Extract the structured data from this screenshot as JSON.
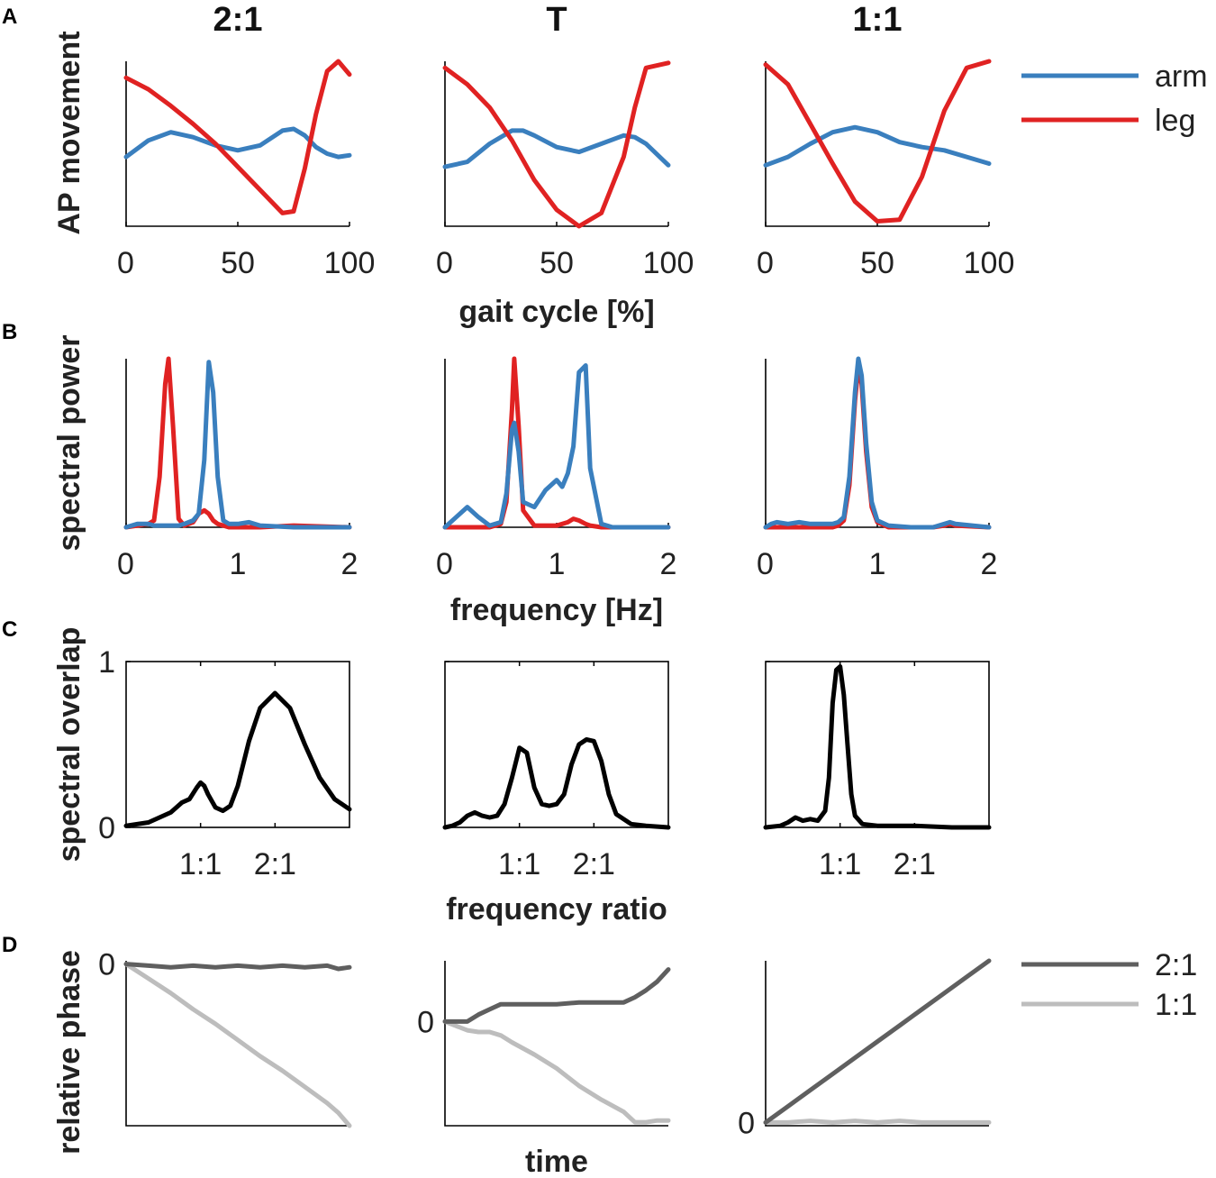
{
  "colors": {
    "arm": "#3a7fbe",
    "leg": "#e02222",
    "ratio21": "#5f5f5f",
    "ratio11": "#bdbdbd",
    "overlap": "#000000"
  },
  "columns": [
    "2:1",
    "T",
    "1:1"
  ],
  "panel_letters": {
    "A": "A",
    "B": "B",
    "C": "C",
    "D": "D"
  },
  "legends": {
    "A": [
      {
        "name": "arm",
        "color": "#3a7fbe"
      },
      {
        "name": "leg",
        "color": "#e02222"
      }
    ],
    "D": [
      {
        "name": "2:1",
        "color": "#5f5f5f"
      },
      {
        "name": "1:1",
        "color": "#bdbdbd"
      }
    ]
  },
  "chart_data": [
    {
      "id": "A",
      "type": "line",
      "ylabel": "AP movement",
      "xlabel": "gait cycle [%]",
      "xlim": [
        0,
        100
      ],
      "ylim": [
        0,
        1
      ],
      "xticks": [
        0,
        50,
        100
      ],
      "subplots": [
        {
          "column": "2:1",
          "x": [
            0,
            10,
            20,
            30,
            40,
            50,
            60,
            70,
            75,
            80,
            85,
            90,
            95,
            100
          ],
          "arm": [
            0.42,
            0.52,
            0.57,
            0.54,
            0.49,
            0.46,
            0.49,
            0.58,
            0.59,
            0.55,
            0.48,
            0.44,
            0.42,
            0.43
          ],
          "leg": [
            0.9,
            0.83,
            0.73,
            0.62,
            0.5,
            0.36,
            0.22,
            0.08,
            0.09,
            0.35,
            0.68,
            0.94,
            1.0,
            0.92
          ]
        },
        {
          "column": "T",
          "x": [
            0,
            10,
            20,
            30,
            35,
            40,
            50,
            60,
            70,
            80,
            85,
            90,
            100
          ],
          "arm": [
            0.36,
            0.39,
            0.5,
            0.58,
            0.58,
            0.55,
            0.48,
            0.45,
            0.5,
            0.55,
            0.54,
            0.5,
            0.37
          ],
          "leg": [
            0.96,
            0.86,
            0.72,
            0.52,
            0.4,
            0.28,
            0.1,
            0.0,
            0.08,
            0.42,
            0.72,
            0.96,
            0.99
          ]
        },
        {
          "column": "1:1",
          "x": [
            0,
            10,
            20,
            30,
            40,
            50,
            60,
            70,
            80,
            90,
            100
          ],
          "arm": [
            0.37,
            0.42,
            0.5,
            0.57,
            0.6,
            0.57,
            0.51,
            0.48,
            0.46,
            0.42,
            0.38
          ],
          "leg": [
            0.98,
            0.86,
            0.62,
            0.38,
            0.15,
            0.03,
            0.04,
            0.3,
            0.7,
            0.96,
            1.0
          ]
        }
      ]
    },
    {
      "id": "B",
      "type": "line",
      "ylabel": "spectral power",
      "xlabel": "frequency [Hz]",
      "xlim": [
        0,
        2
      ],
      "ylim": [
        0,
        1
      ],
      "xticks": [
        0,
        1,
        2
      ],
      "subplots": [
        {
          "column": "2:1",
          "x": [
            0,
            0.1,
            0.2,
            0.25,
            0.3,
            0.35,
            0.38,
            0.42,
            0.47,
            0.52,
            0.6,
            0.65,
            0.7,
            0.74,
            0.78,
            0.82,
            0.87,
            0.92,
            1.0,
            1.1,
            1.2,
            1.5,
            2.0
          ],
          "arm": [
            0.0,
            0.02,
            0.02,
            0.01,
            0.01,
            0.01,
            0.01,
            0.01,
            0.01,
            0.02,
            0.04,
            0.08,
            0.4,
            0.98,
            0.8,
            0.3,
            0.04,
            0.02,
            0.02,
            0.03,
            0.01,
            0.0,
            0.0
          ],
          "leg": [
            0.0,
            0.01,
            0.02,
            0.04,
            0.3,
            0.85,
            1.0,
            0.6,
            0.05,
            0.01,
            0.03,
            0.08,
            0.1,
            0.08,
            0.04,
            0.02,
            0.01,
            0.0,
            0.0,
            0.0,
            0.0,
            0.01,
            0.0
          ]
        },
        {
          "column": "T",
          "x": [
            0,
            0.1,
            0.2,
            0.3,
            0.4,
            0.5,
            0.55,
            0.6,
            0.62,
            0.66,
            0.7,
            0.8,
            0.9,
            1.0,
            1.05,
            1.1,
            1.15,
            1.2,
            1.26,
            1.3,
            1.4,
            1.5,
            2.0
          ],
          "arm": [
            0.0,
            0.06,
            0.12,
            0.06,
            0.01,
            0.03,
            0.2,
            0.58,
            0.62,
            0.45,
            0.15,
            0.12,
            0.22,
            0.28,
            0.24,
            0.32,
            0.48,
            0.92,
            0.96,
            0.35,
            0.02,
            0.0,
            0.0
          ],
          "leg": [
            0.0,
            0.0,
            0.0,
            0.0,
            0.0,
            0.02,
            0.15,
            0.7,
            1.0,
            0.6,
            0.1,
            0.01,
            0.01,
            0.01,
            0.02,
            0.03,
            0.05,
            0.04,
            0.02,
            0.01,
            0.0,
            0.0,
            0.0
          ]
        },
        {
          "column": "1:1",
          "x": [
            0,
            0.05,
            0.1,
            0.2,
            0.3,
            0.4,
            0.5,
            0.6,
            0.65,
            0.7,
            0.75,
            0.8,
            0.83,
            0.86,
            0.9,
            0.95,
            1.0,
            1.1,
            1.3,
            1.5,
            1.6,
            1.65,
            1.7,
            2.0
          ],
          "arm": [
            0.0,
            0.02,
            0.03,
            0.02,
            0.03,
            0.02,
            0.02,
            0.02,
            0.03,
            0.06,
            0.3,
            0.8,
            1.0,
            0.9,
            0.5,
            0.15,
            0.04,
            0.01,
            0.0,
            0.0,
            0.02,
            0.03,
            0.02,
            0.0
          ],
          "leg": [
            0.0,
            0.0,
            0.0,
            0.0,
            0.0,
            0.0,
            0.0,
            0.0,
            0.01,
            0.04,
            0.25,
            0.75,
            0.95,
            0.85,
            0.45,
            0.12,
            0.03,
            0.0,
            0.0,
            0.0,
            0.01,
            0.02,
            0.01,
            0.0
          ]
        }
      ]
    },
    {
      "id": "C",
      "type": "line",
      "ylabel": "spectral overlap",
      "xlabel": "frequency ratio",
      "xlim": [
        0,
        3
      ],
      "ylim": [
        0,
        1
      ],
      "xticks": [
        1,
        2
      ],
      "xticklabels": [
        "1:1",
        "2:1"
      ],
      "yticks": [
        0,
        1
      ],
      "subplots": [
        {
          "column": "2:1",
          "x": [
            0,
            0.3,
            0.6,
            0.75,
            0.85,
            0.95,
            1.0,
            1.05,
            1.1,
            1.2,
            1.3,
            1.4,
            1.5,
            1.65,
            1.8,
            2.0,
            2.2,
            2.4,
            2.6,
            2.8,
            3.0
          ],
          "y": [
            0.01,
            0.03,
            0.09,
            0.15,
            0.17,
            0.24,
            0.27,
            0.25,
            0.2,
            0.12,
            0.1,
            0.13,
            0.25,
            0.52,
            0.72,
            0.81,
            0.72,
            0.5,
            0.3,
            0.17,
            0.11
          ]
        },
        {
          "column": "T",
          "x": [
            0,
            0.1,
            0.2,
            0.3,
            0.4,
            0.5,
            0.6,
            0.7,
            0.8,
            0.9,
            1.0,
            1.1,
            1.2,
            1.3,
            1.4,
            1.5,
            1.6,
            1.7,
            1.8,
            1.9,
            2.0,
            2.1,
            2.2,
            2.3,
            2.5,
            2.7,
            3.0
          ],
          "y": [
            0.0,
            0.01,
            0.03,
            0.07,
            0.09,
            0.07,
            0.06,
            0.07,
            0.14,
            0.3,
            0.48,
            0.45,
            0.24,
            0.14,
            0.13,
            0.14,
            0.2,
            0.38,
            0.5,
            0.53,
            0.52,
            0.4,
            0.2,
            0.08,
            0.02,
            0.01,
            0.0
          ]
        },
        {
          "column": "1:1",
          "x": [
            0,
            0.2,
            0.3,
            0.4,
            0.5,
            0.6,
            0.7,
            0.8,
            0.85,
            0.9,
            0.95,
            1.0,
            1.05,
            1.1,
            1.15,
            1.2,
            1.3,
            1.5,
            2.0,
            2.5,
            3.0
          ],
          "y": [
            0.0,
            0.01,
            0.03,
            0.06,
            0.04,
            0.05,
            0.04,
            0.1,
            0.3,
            0.75,
            0.95,
            0.97,
            0.8,
            0.5,
            0.2,
            0.07,
            0.02,
            0.01,
            0.01,
            0.0,
            0.0
          ]
        }
      ]
    },
    {
      "id": "D",
      "type": "line",
      "ylabel": "relative phase",
      "xlabel": "time",
      "xlim": [
        0,
        1
      ],
      "ylim": [
        -1,
        1
      ],
      "yticks": [
        0
      ],
      "yticklabels": [
        "0"
      ],
      "subplots": [
        {
          "column": "2:1",
          "ylim": [
            -1,
            0.02
          ],
          "x": [
            0,
            0.1,
            0.2,
            0.3,
            0.4,
            0.5,
            0.6,
            0.7,
            0.8,
            0.9,
            0.95,
            1.0
          ],
          "r21": [
            0.0,
            -0.01,
            -0.02,
            -0.01,
            -0.02,
            -0.01,
            -0.02,
            -0.01,
            -0.02,
            -0.01,
            -0.03,
            -0.02
          ],
          "r11": [
            0.0,
            -0.09,
            -0.18,
            -0.28,
            -0.37,
            -0.47,
            -0.57,
            -0.66,
            -0.76,
            -0.86,
            -0.92,
            -1.0
          ]
        },
        {
          "column": "T",
          "ylim": [
            -0.6,
            0.35
          ],
          "x": [
            0,
            0.1,
            0.15,
            0.2,
            0.25,
            0.3,
            0.4,
            0.5,
            0.6,
            0.7,
            0.8,
            0.85,
            0.9,
            0.95,
            1.0
          ],
          "r21": [
            0.0,
            0.0,
            0.04,
            0.07,
            0.1,
            0.1,
            0.1,
            0.1,
            0.11,
            0.11,
            0.11,
            0.14,
            0.18,
            0.23,
            0.3
          ],
          "r11": [
            0.0,
            -0.05,
            -0.06,
            -0.06,
            -0.08,
            -0.12,
            -0.19,
            -0.27,
            -0.37,
            -0.45,
            -0.52,
            -0.58,
            -0.58,
            -0.57,
            -0.57
          ]
        },
        {
          "column": "1:1",
          "ylim": [
            -0.02,
            1.0
          ],
          "x": [
            0,
            0.1,
            0.2,
            0.3,
            0.4,
            0.5,
            0.6,
            0.7,
            0.8,
            0.9,
            1.0
          ],
          "r21": [
            0.0,
            0.1,
            0.2,
            0.3,
            0.4,
            0.5,
            0.6,
            0.7,
            0.8,
            0.9,
            1.0
          ],
          "r11": [
            0.0,
            0.0,
            0.01,
            0.0,
            0.01,
            0.0,
            0.01,
            0.0,
            0.0,
            0.0,
            0.0
          ]
        }
      ]
    }
  ]
}
